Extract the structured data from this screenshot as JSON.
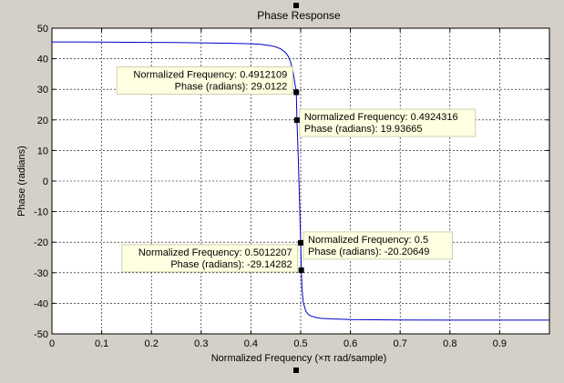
{
  "chart_data": {
    "type": "line",
    "title": "Phase Response",
    "xlabel": "Normalized Frequency (×π rad/sample)",
    "ylabel": "Phase (radians)",
    "xlim": [
      0,
      1
    ],
    "ylim": [
      -50,
      50
    ],
    "xticks": [
      0,
      0.1,
      0.2,
      0.3,
      0.4,
      0.5,
      0.6,
      0.7,
      0.8,
      0.9
    ],
    "yticks": [
      50,
      40,
      30,
      20,
      10,
      0,
      -10,
      -20,
      -30,
      -40,
      -50
    ],
    "grid": true,
    "line_color": "#0000c8",
    "series": [
      {
        "x": [
          0,
          0.05,
          0.1,
          0.15,
          0.2,
          0.25,
          0.3,
          0.35,
          0.4,
          0.42,
          0.44,
          0.45,
          0.46,
          0.47,
          0.475,
          0.48,
          0.485,
          0.488,
          0.4912109,
          0.4924316,
          0.495,
          0.4975,
          0.5,
          0.5012207,
          0.5025,
          0.505,
          0.51,
          0.515,
          0.52,
          0.53,
          0.54,
          0.56,
          0.6,
          0.7,
          0.8,
          0.9,
          1.0
        ],
        "y": [
          45.5,
          45.5,
          45.45,
          45.4,
          45.35,
          45.3,
          45.2,
          45.1,
          44.9,
          44.7,
          44.3,
          43.9,
          43.2,
          42.0,
          40.8,
          38.8,
          35.5,
          32.5,
          29.0122,
          19.93665,
          8.0,
          -5.0,
          -20.20649,
          -29.14282,
          -35.0,
          -39.5,
          -42.5,
          -43.6,
          -44.1,
          -44.6,
          -44.9,
          -45.1,
          -45.3,
          -45.45,
          -45.5,
          -45.5,
          -45.5
        ]
      }
    ],
    "annotations": [
      {
        "x": 0.4912109,
        "y": 29.0122,
        "line1": "Normalized Frequency: 0.4912109",
        "line2": "Phase (radians): 29.0122",
        "side": "left"
      },
      {
        "x": 0.4924316,
        "y": 19.93665,
        "line1": "Normalized Frequency: 0.4924316",
        "line2": "Phase (radians): 19.93665",
        "side": "right"
      },
      {
        "x": 0.5,
        "y": -20.20649,
        "line1": "Normalized Frequency: 0.5",
        "line2": "Phase (radians): -20.20649",
        "side": "right"
      },
      {
        "x": 0.5012207,
        "y": -29.14282,
        "line1": "Normalized Frequency: 0.5012207",
        "line2": "Phase (radians): -29.14282",
        "side": "left"
      }
    ]
  }
}
